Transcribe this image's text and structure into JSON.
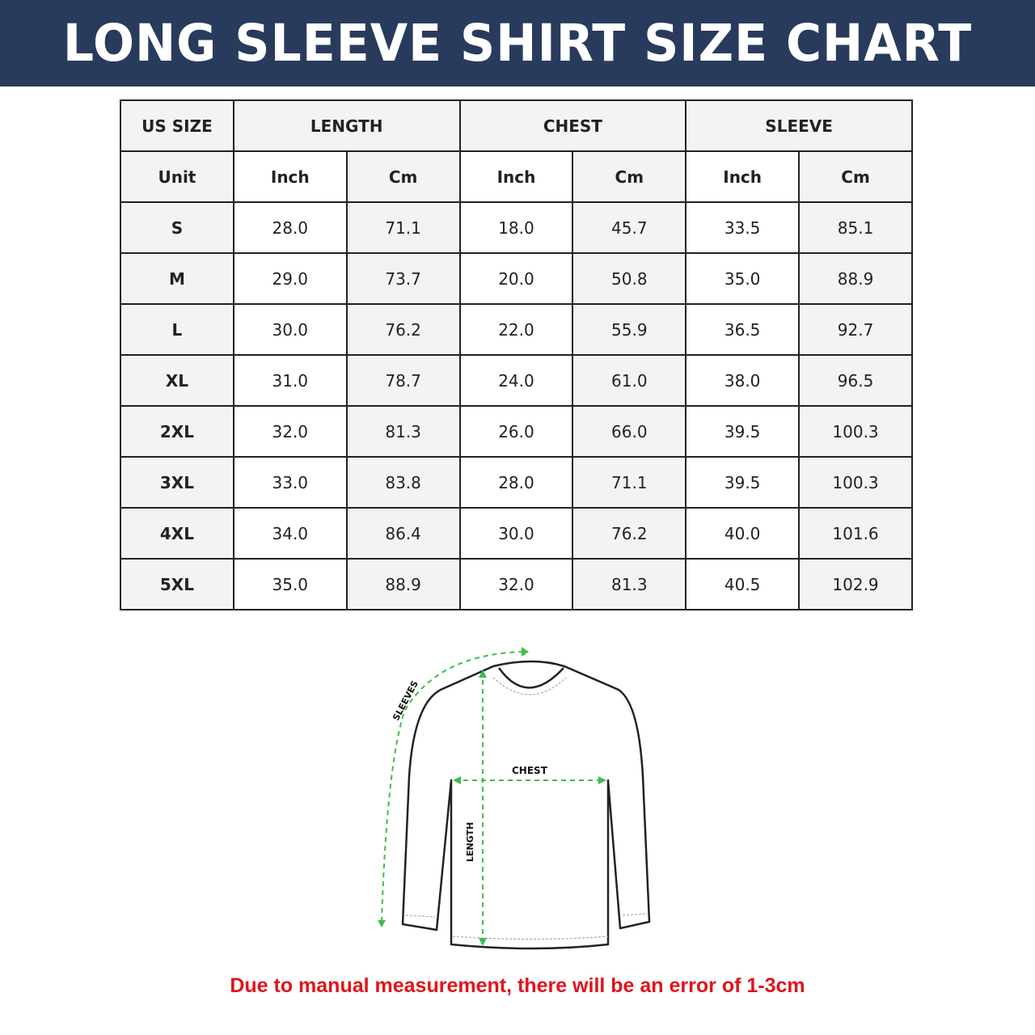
{
  "title": "LONG SLEEVE SHIRT SIZE CHART",
  "table": {
    "group_headers": [
      "US SIZE",
      "LENGTH",
      "CHEST",
      "SLEEVE"
    ],
    "unit_row": [
      "Unit",
      "Inch",
      "Cm",
      "Inch",
      "Cm",
      "Inch",
      "Cm"
    ],
    "rows": [
      [
        "S",
        "28.0",
        "71.1",
        "18.0",
        "45.7",
        "33.5",
        "85.1"
      ],
      [
        "M",
        "29.0",
        "73.7",
        "20.0",
        "50.8",
        "35.0",
        "88.9"
      ],
      [
        "L",
        "30.0",
        "76.2",
        "22.0",
        "55.9",
        "36.5",
        "92.7"
      ],
      [
        "XL",
        "31.0",
        "78.7",
        "24.0",
        "61.0",
        "38.0",
        "96.5"
      ],
      [
        "2XL",
        "32.0",
        "81.3",
        "26.0",
        "66.0",
        "39.5",
        "100.3"
      ],
      [
        "3XL",
        "33.0",
        "83.8",
        "28.0",
        "71.1",
        "39.5",
        "100.3"
      ],
      [
        "4XL",
        "34.0",
        "86.4",
        "30.0",
        "76.2",
        "40.0",
        "101.6"
      ],
      [
        "5XL",
        "35.0",
        "88.9",
        "32.0",
        "81.3",
        "40.5",
        "102.9"
      ]
    ]
  },
  "diagram": {
    "labels": {
      "sleeves": "SLEEVES",
      "chest": "CHEST",
      "length": "LENGTH"
    },
    "measure_color": "#3cbf4a"
  },
  "colors": {
    "banner": "#283b5c",
    "note": "#e0141b"
  },
  "note": "Due to manual measurement, there will be an error of 1-3cm"
}
